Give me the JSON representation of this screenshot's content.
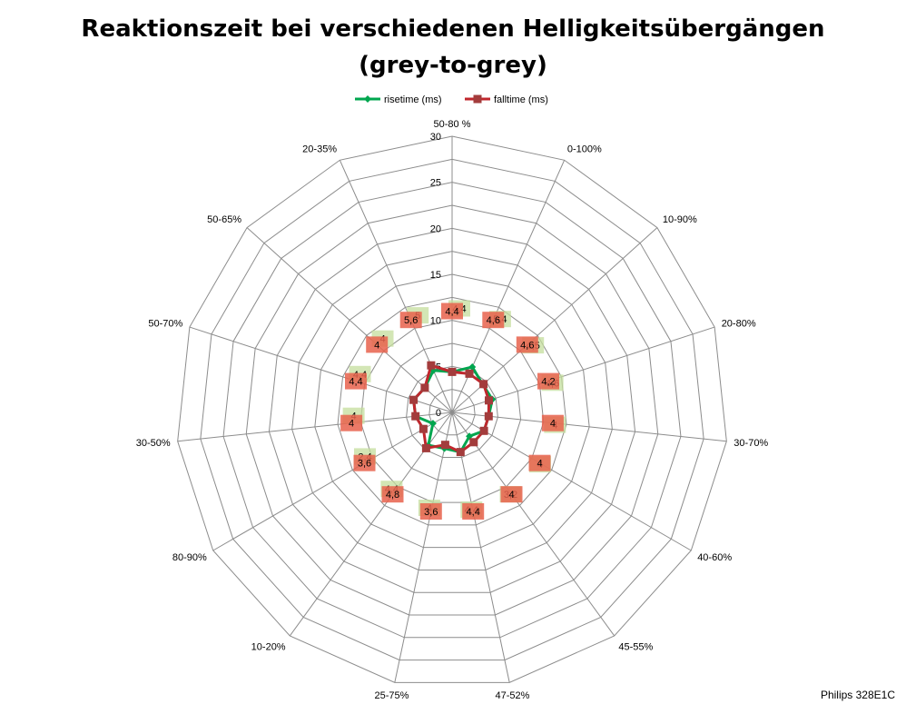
{
  "title_line1": "Reaktionszeit bei verschiedenen Helligkeitsübergängen",
  "title_line2": "(grey-to-grey)",
  "credit": "Philips 328E1C",
  "chart_data": {
    "type": "radar",
    "title": "Reaktionszeit bei verschiedenen Helligkeitsübergängen (grey-to-grey)",
    "categories": [
      "50-80 %",
      "0-100%",
      "10-90%",
      "20-80%",
      "30-70%",
      "40-60%",
      "45-55%",
      "47-52%",
      "25-75%",
      "10-20%",
      "80-90%",
      "30-50%",
      "50-70%",
      "50-65%",
      "20-35%"
    ],
    "r_ticks": [
      0,
      5,
      10,
      15,
      20,
      25,
      30
    ],
    "rlim": [
      0,
      30
    ],
    "legend_position": "top",
    "grid": true,
    "series": [
      {
        "name": "risetime (ms)",
        "color": "#00A64F",
        "label_color": "#C4DE9C",
        "values": [
          4.4,
          5.4,
          4.5,
          4.6,
          4,
          4,
          3.2,
          4.4,
          4,
          4.4,
          2.4,
          4,
          4.4,
          4,
          5
        ]
      },
      {
        "name": "falltime (ms)",
        "color": "#C0272D",
        "label_color": "#E8624C",
        "values": [
          4.4,
          4.6,
          4.6,
          4.2,
          4,
          4,
          4,
          4.4,
          3.6,
          4.8,
          3.6,
          4,
          4.4,
          4,
          5.6
        ]
      }
    ],
    "data_labels": {
      "risetime (ms)": [
        "4,4",
        "5,4",
        "4,5",
        "4,6",
        "4",
        "4",
        "3,2",
        "4,4",
        "4",
        "4,4",
        "2,4",
        "4",
        "4,4",
        "4",
        "5"
      ],
      "falltime (ms)": [
        "4,4",
        "4,6",
        "4,6",
        "4,2",
        "4",
        "4",
        "4",
        "4,4",
        "3,6",
        "4,8",
        "3,6",
        "4",
        "4,4",
        "4",
        "5,6"
      ]
    }
  }
}
